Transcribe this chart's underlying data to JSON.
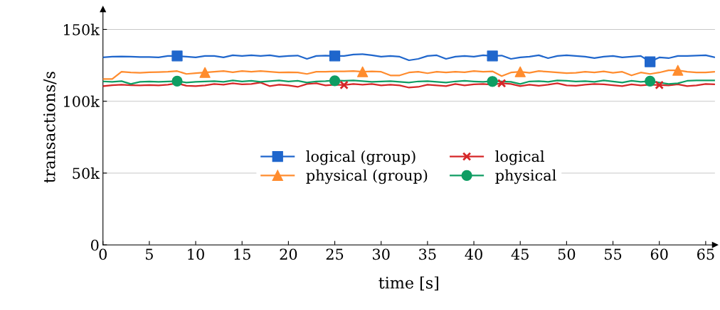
{
  "chart_data": {
    "type": "line",
    "xlabel": "time [s]",
    "ylabel": "transactions/s",
    "x": [
      0,
      1,
      2,
      3,
      4,
      5,
      6,
      7,
      8,
      9,
      10,
      11,
      12,
      13,
      14,
      15,
      16,
      17,
      18,
      19,
      20,
      21,
      22,
      23,
      24,
      25,
      26,
      27,
      28,
      29,
      30,
      31,
      32,
      33,
      34,
      35,
      36,
      37,
      38,
      39,
      40,
      41,
      42,
      43,
      44,
      45,
      46,
      47,
      48,
      49,
      50,
      51,
      52,
      53,
      54,
      55,
      56,
      57,
      58,
      59,
      60,
      61,
      62,
      63,
      64,
      65,
      66
    ],
    "series": [
      {
        "name": "logical (group)",
        "color": "#1f66cc",
        "values": [
          130500,
          131000,
          131200,
          131000,
          130800,
          130800,
          130500,
          131500,
          131500,
          131000,
          130500,
          131500,
          131500,
          130500,
          132000,
          131500,
          132000,
          131500,
          132000,
          131000,
          131500,
          131800,
          129500,
          131500,
          131800,
          131500,
          131500,
          132500,
          132800,
          132000,
          131000,
          131500,
          131000,
          128500,
          129500,
          131500,
          132000,
          129500,
          131000,
          131500,
          131000,
          132000,
          131500,
          131800,
          129500,
          130500,
          131000,
          132000,
          130000,
          131500,
          132000,
          131500,
          131000,
          130000,
          131000,
          131500,
          130500,
          131000,
          131500,
          127500,
          130500,
          130000,
          131500,
          131500,
          131800,
          132000,
          130500
        ]
      },
      {
        "name": "physical (group)",
        "color": "#ff8c2e",
        "values": [
          115500,
          115500,
          120500,
          120000,
          119800,
          120200,
          120300,
          120500,
          121000,
          119000,
          119500,
          120000,
          120500,
          121000,
          120200,
          121000,
          120500,
          121000,
          120500,
          120000,
          120200,
          120000,
          119000,
          120500,
          120500,
          120800,
          120800,
          121000,
          120500,
          120800,
          120500,
          118000,
          118000,
          120000,
          120500,
          119500,
          120500,
          120000,
          120500,
          120200,
          121000,
          120500,
          120800,
          117500,
          120000,
          120500,
          119800,
          121000,
          120500,
          120000,
          119500,
          119800,
          120500,
          120000,
          120800,
          119800,
          120500,
          118000,
          120000,
          119000,
          120000,
          121500,
          121500,
          120500,
          120000,
          120000,
          120500
        ]
      },
      {
        "name": "logical",
        "color": "#d62728",
        "values": [
          110500,
          111200,
          111500,
          111200,
          111000,
          111300,
          111000,
          111500,
          112500,
          110800,
          110500,
          111000,
          112000,
          111500,
          112500,
          111800,
          112000,
          113000,
          110500,
          111500,
          111000,
          110000,
          112000,
          112500,
          111000,
          111500,
          111300,
          112000,
          111500,
          112000,
          111000,
          111500,
          111000,
          109500,
          110000,
          111500,
          111000,
          110500,
          112000,
          111000,
          111800,
          112000,
          111500,
          112500,
          112000,
          110500,
          111500,
          110800,
          111500,
          112500,
          111000,
          110800,
          111500,
          112000,
          111800,
          111200,
          110500,
          111800,
          111000,
          111500,
          111300,
          111000,
          111800,
          110500,
          111000,
          112000,
          111800
        ]
      },
      {
        "name": "physical",
        "color": "#0f9d63",
        "values": [
          113800,
          113500,
          114000,
          112000,
          113500,
          113800,
          113500,
          113800,
          114000,
          113000,
          113500,
          113800,
          114000,
          113500,
          114500,
          113800,
          114200,
          113500,
          114000,
          114500,
          113800,
          114200,
          113000,
          113800,
          114000,
          114500,
          114200,
          114500,
          114000,
          113500,
          113800,
          114000,
          113500,
          113000,
          113800,
          114000,
          113500,
          113000,
          113800,
          114200,
          113800,
          113500,
          114000,
          113800,
          113500,
          112000,
          113800,
          114000,
          113500,
          114500,
          114200,
          113800,
          114000,
          113500,
          114500,
          113800,
          113000,
          114200,
          113500,
          114000,
          113000,
          112000,
          112500,
          114200,
          114500,
          114500,
          114500
        ]
      },
      {
        "type": "scatter",
        "color": "#1f66cc",
        "marker": "square",
        "x": [
          8,
          25,
          42,
          59
        ],
        "values": [
          131500,
          131500,
          131500,
          127500
        ]
      },
      {
        "type": "scatter",
        "color": "#ff8c2e",
        "marker": "triangle",
        "x": [
          11,
          28,
          45,
          62
        ],
        "values": [
          120000,
          120500,
          120500,
          121500
        ]
      },
      {
        "type": "scatter",
        "color": "#d62728",
        "marker": "cross",
        "x": [
          26,
          43,
          60
        ],
        "values": [
          111300,
          112500,
          111300
        ]
      },
      {
        "type": "scatter",
        "color": "#0f9d63",
        "marker": "circle",
        "x": [
          8,
          25,
          42,
          59
        ],
        "values": [
          114000,
          114200,
          113800,
          114000
        ]
      }
    ],
    "xlim": [
      0,
      66
    ],
    "xticks": [
      0,
      5,
      10,
      15,
      20,
      25,
      30,
      35,
      40,
      45,
      50,
      55,
      60,
      65
    ],
    "ylim": [
      0,
      164000
    ],
    "yticks": [
      {
        "value": 0,
        "label": "0"
      },
      {
        "value": 50000,
        "label": "50k"
      },
      {
        "value": 100000,
        "label": "100k"
      },
      {
        "value": 150000,
        "label": "150k"
      }
    ],
    "grid": "y",
    "legend": "center",
    "line_style": "solid"
  }
}
